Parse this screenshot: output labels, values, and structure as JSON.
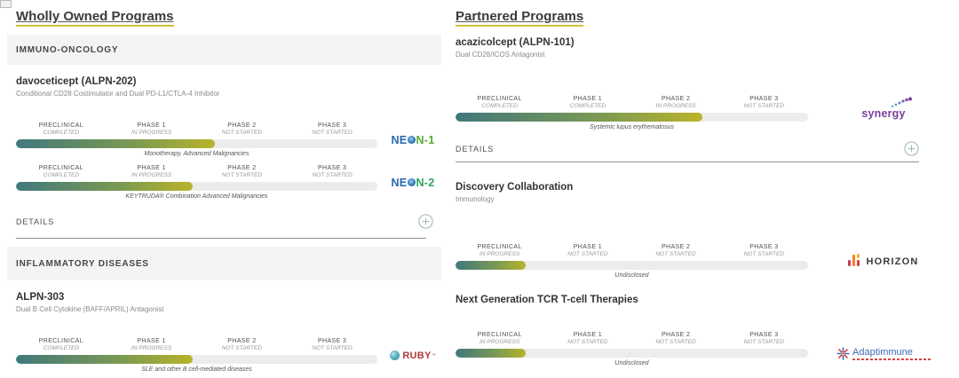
{
  "left_column": {
    "heading": "Wholly Owned Programs",
    "category_1": "IMMUNO-ONCOLOGY",
    "program_1_name": "davoceticept (ALPN-202)",
    "program_1_desc": "Conditional CD28 Costimulator and Dual PD-L1/CTLA-4 Inhibitor",
    "details_label": "DETAILS",
    "category_2": "INFLAMMATORY DISEASES",
    "program_2_name": "ALPN-303",
    "program_2_desc": "Dual B Cell Cytokine (BAFF/APRIL) Antagonist"
  },
  "right_column": {
    "heading": "Partnered Programs",
    "program_1_name": "acazicolcept (ALPN-101)",
    "program_1_desc": "Dual CD28/ICOS Antagonist",
    "details_label": "DETAILS",
    "program_2_name": "Discovery Collaboration",
    "program_2_desc": "Immunology",
    "program_3_name": "Next Generation TCR T-cell Therapies"
  },
  "bars": {
    "mono": {
      "phases": [
        {
          "name": "PRECLINICAL",
          "status": "COMPLETED"
        },
        {
          "name": "PHASE 1",
          "status": "IN PROGRESS"
        },
        {
          "name": "PHASE 2",
          "status": "NOT STARTED"
        },
        {
          "name": "PHASE 3",
          "status": "NOT STARTED"
        }
      ],
      "caption": "Monotherapy, Advanced Malignancies",
      "fill_percent": 55
    },
    "keytruda": {
      "phases": [
        {
          "name": "PRECLINICAL",
          "status": "COMPLETED"
        },
        {
          "name": "PHASE 1",
          "status": "IN PROGRESS"
        },
        {
          "name": "PHASE 2",
          "status": "NOT STARTED"
        },
        {
          "name": "PHASE 3",
          "status": "NOT STARTED"
        }
      ],
      "caption": "KEYTRUDA® Combination Advanced Malignancies",
      "fill_percent": 49
    },
    "sle": {
      "phases": [
        {
          "name": "PRECLINICAL",
          "status": "COMPLETED"
        },
        {
          "name": "PHASE 1",
          "status": "IN PROGRESS"
        },
        {
          "name": "PHASE 2",
          "status": "NOT STARTED"
        },
        {
          "name": "PHASE 3",
          "status": "NOT STARTED"
        }
      ],
      "caption": "SLE and other B cell-mediated diseases",
      "fill_percent": 49
    },
    "lupus": {
      "phases": [
        {
          "name": "PRECLINICAL",
          "status": "COMPLETED"
        },
        {
          "name": "PHASE 1",
          "status": "COMPLETED"
        },
        {
          "name": "PHASE 2",
          "status": "IN PROGRESS"
        },
        {
          "name": "PHASE 3",
          "status": "NOT STARTED"
        }
      ],
      "caption": "Systemic lupus erythematosus",
      "fill_percent": 70
    },
    "discovery": {
      "phases": [
        {
          "name": "PRECLINICAL",
          "status": "IN PROGRESS"
        },
        {
          "name": "PHASE 1",
          "status": "NOT STARTED"
        },
        {
          "name": "PHASE 2",
          "status": "NOT STARTED"
        },
        {
          "name": "PHASE 3",
          "status": "NOT STARTED"
        }
      ],
      "caption": "Undisclosed",
      "fill_percent": 20
    },
    "tcr": {
      "phases": [
        {
          "name": "PRECLINICAL",
          "status": "IN PROGRESS"
        },
        {
          "name": "PHASE 1",
          "status": "NOT STARTED"
        },
        {
          "name": "PHASE 2",
          "status": "NOT STARTED"
        },
        {
          "name": "PHASE 3",
          "status": "NOT STARTED"
        }
      ],
      "caption": "Undisclosed",
      "fill_percent": 20
    }
  },
  "partners": {
    "neon1": {
      "prefix": "NE",
      "suffix": "N-1"
    },
    "neon2": {
      "prefix": "NE",
      "suffix": "N-2"
    },
    "ruby": {
      "label": "RUBY",
      "tm": "™"
    },
    "synergy": {
      "label": "synergy"
    },
    "horizon": {
      "label": "HORIZON"
    },
    "adaptimmune": {
      "label": "Adaptimmune"
    }
  },
  "colors": {
    "bar_fill_start": "#40787c",
    "bar_fill_end": "#b9b32a",
    "heading_underline": "#cdc33c",
    "track": "#ececec"
  }
}
